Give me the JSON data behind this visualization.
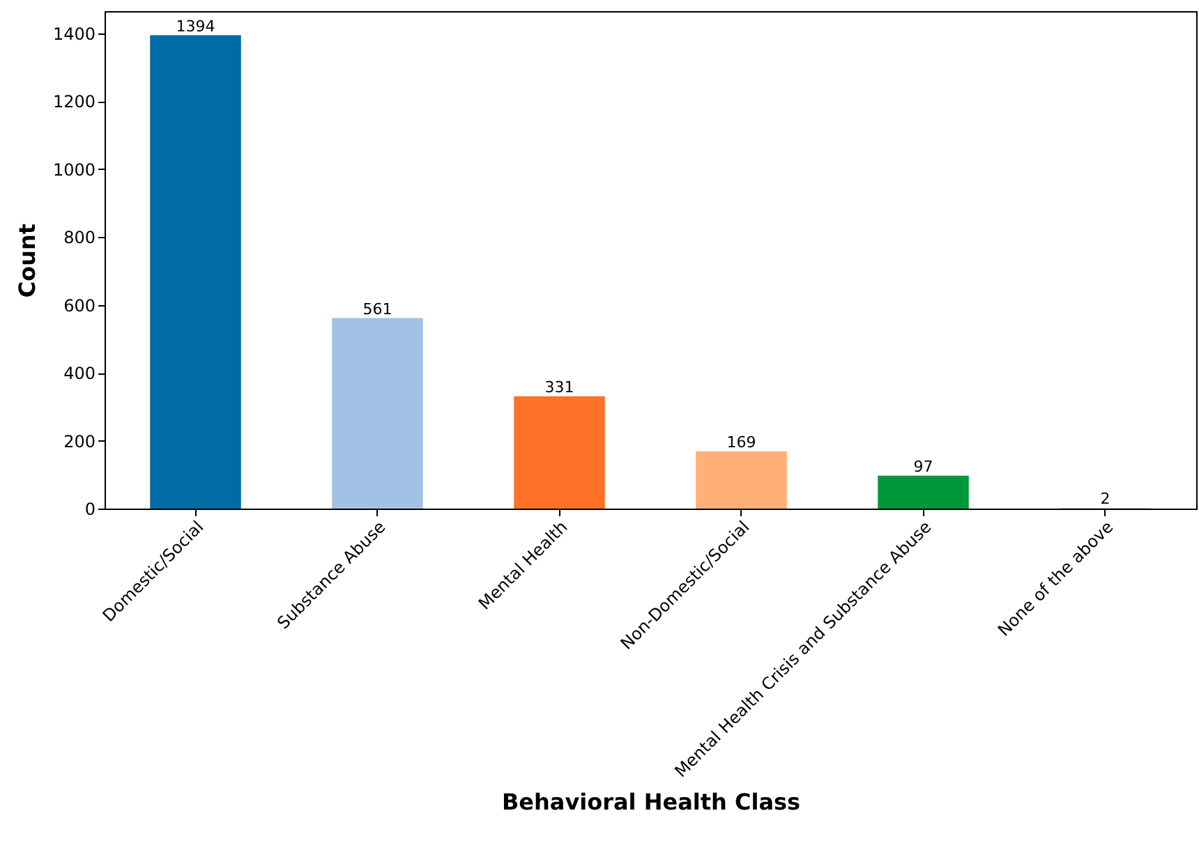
{
  "chart_data": {
    "type": "bar",
    "xlabel": "Behavioral Health Class",
    "ylabel": "Count",
    "categories": [
      "Domestic/Social",
      "Substance Abuse",
      "Mental Health",
      "Non-Domestic/Social",
      "Mental Health Crisis and Substance Abuse",
      "None of the above"
    ],
    "values": [
      1394,
      561,
      331,
      169,
      97,
      2
    ],
    "colors": [
      "#006ba4",
      "#a3c1e4",
      "#ff7127",
      "#ffb077",
      "#00983a",
      "#c8c8c8"
    ],
    "ylim": [
      0,
      1465
    ],
    "yticks": [
      0,
      200,
      400,
      600,
      800,
      1000,
      1200,
      1400
    ],
    "grid": false,
    "data_labels": true
  }
}
